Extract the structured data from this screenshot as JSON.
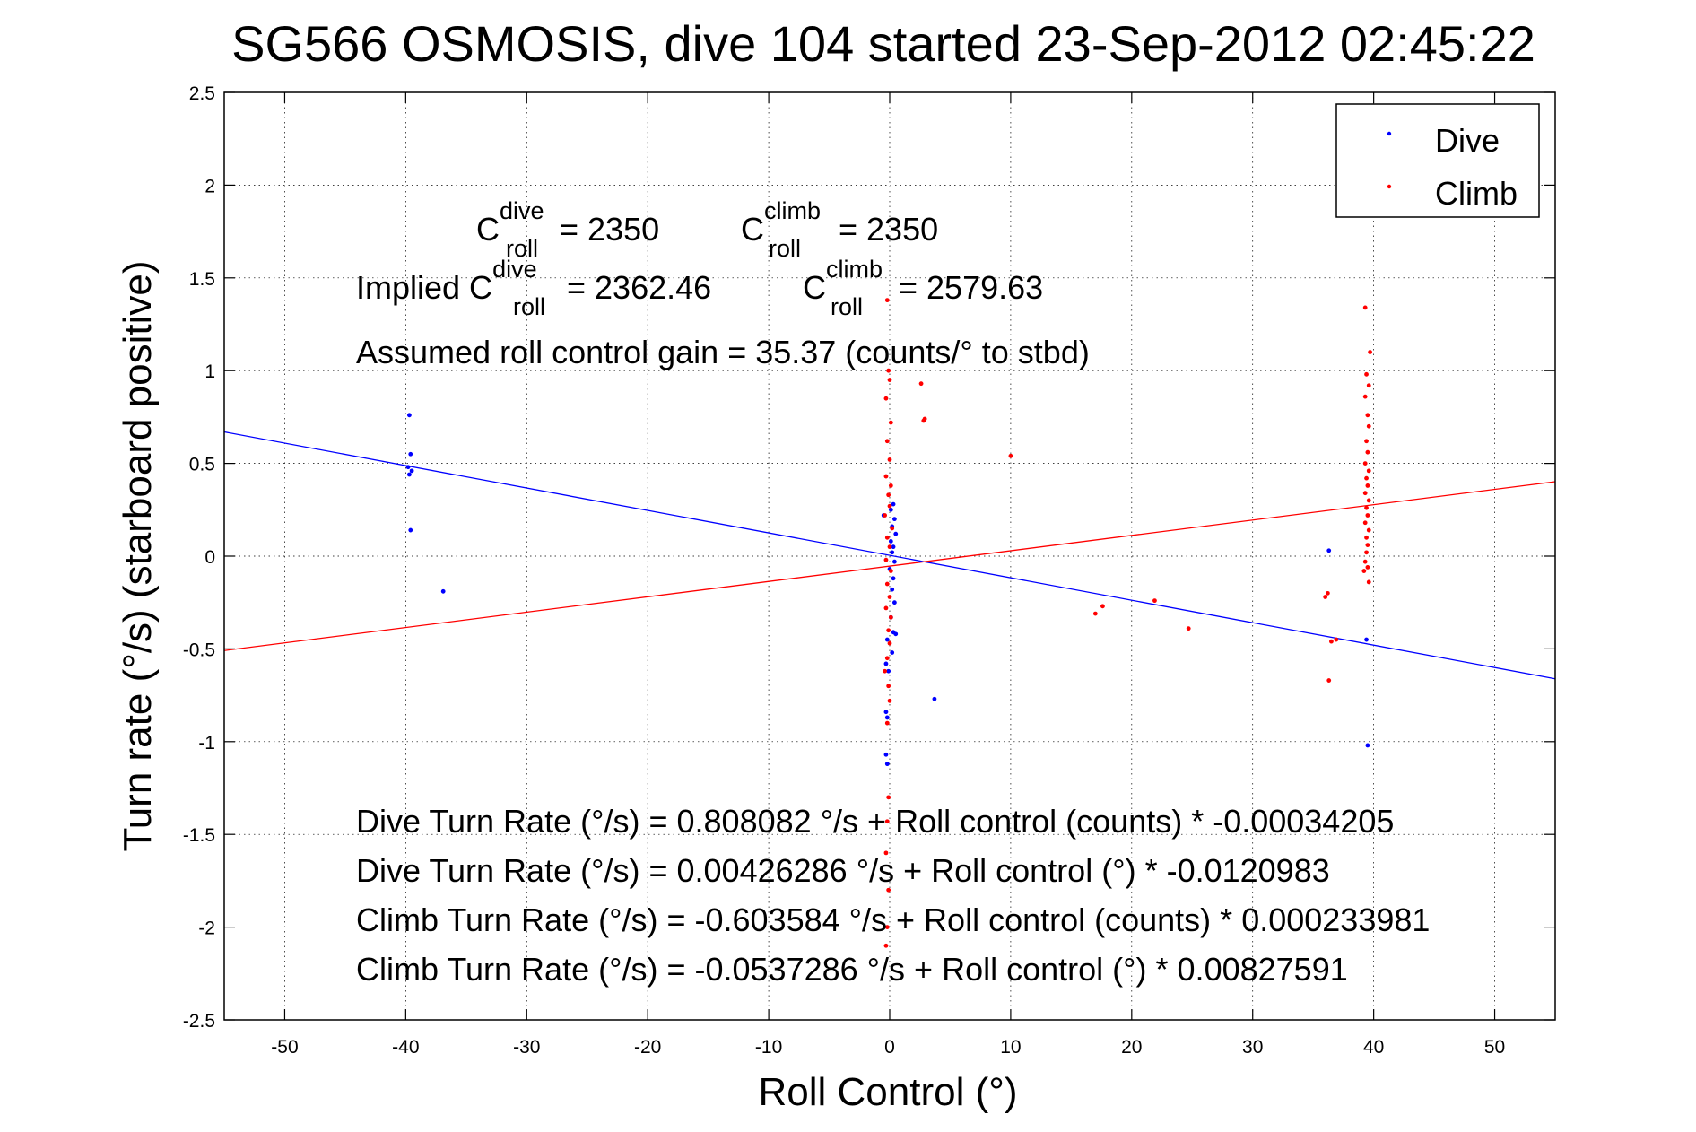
{
  "chart_data": {
    "type": "scatter",
    "title": "SG566 OSMOSIS, dive 104 started 23-Sep-2012 02:45:22",
    "xlabel": "Roll Control (°)",
    "ylabel": "Turn rate (°/s)  (starboard positive)",
    "xlim": [
      -55,
      55
    ],
    "ylim": [
      -2.5,
      2.5
    ],
    "xticks": [
      -50,
      -40,
      -30,
      -20,
      -10,
      0,
      10,
      20,
      30,
      40,
      50
    ],
    "yticks": [
      -2.5,
      -2,
      -1.5,
      -1,
      -0.5,
      0,
      0.5,
      1,
      1.5,
      2,
      2.5
    ],
    "xtick_labels": [
      "-50",
      "-40",
      "-30",
      "-20",
      "-10",
      "0",
      "10",
      "20",
      "30",
      "40",
      "50"
    ],
    "ytick_labels": [
      "-2.5",
      "-2",
      "-1.5",
      "-1",
      "-0.5",
      "0",
      "0.5",
      "1",
      "1.5",
      "2",
      "2.5"
    ],
    "grid": true,
    "legend_position": "top-right",
    "colors": {
      "dive": "#0000ff",
      "climb": "#ff0000"
    },
    "series": [
      {
        "name": "Dive",
        "color": "#0000ff",
        "points": [
          [
            -39.7,
            0.76
          ],
          [
            -39.6,
            0.55
          ],
          [
            -39.8,
            0.48
          ],
          [
            -39.5,
            0.46
          ],
          [
            -39.7,
            0.44
          ],
          [
            -39.6,
            0.14
          ],
          [
            -36.9,
            -0.19
          ],
          [
            -0.5,
            0.22
          ],
          [
            0.3,
            0.28
          ],
          [
            0.1,
            0.25
          ],
          [
            0.4,
            0.2
          ],
          [
            0.2,
            0.16
          ],
          [
            0.5,
            0.12
          ],
          [
            0.1,
            0.08
          ],
          [
            0.3,
            0.05
          ],
          [
            0.2,
            0.02
          ],
          [
            0.4,
            -0.03
          ],
          [
            0.0,
            -0.07
          ],
          [
            0.3,
            -0.12
          ],
          [
            0.2,
            -0.18
          ],
          [
            0.4,
            -0.25
          ],
          [
            0.1,
            -0.33
          ],
          [
            0.3,
            -0.41
          ],
          [
            0.5,
            -0.42
          ],
          [
            -0.2,
            -0.45
          ],
          [
            0.2,
            -0.52
          ],
          [
            -0.3,
            -0.58
          ],
          [
            -0.1,
            -0.62
          ],
          [
            -0.3,
            -0.84
          ],
          [
            -0.2,
            -0.87
          ],
          [
            -0.3,
            -1.07
          ],
          [
            -0.2,
            -1.12
          ],
          [
            3.7,
            -0.77
          ],
          [
            36.3,
            0.03
          ],
          [
            39.4,
            -0.45
          ],
          [
            39.5,
            -1.02
          ]
        ]
      },
      {
        "name": "Climb",
        "color": "#ff0000",
        "points": [
          [
            -0.2,
            1.38
          ],
          [
            -0.1,
            1.0
          ],
          [
            0.0,
            0.95
          ],
          [
            -0.3,
            0.85
          ],
          [
            0.1,
            0.72
          ],
          [
            -0.2,
            0.62
          ],
          [
            0.0,
            0.52
          ],
          [
            -0.3,
            0.43
          ],
          [
            0.1,
            0.38
          ],
          [
            -0.1,
            0.33
          ],
          [
            0.0,
            0.27
          ],
          [
            -0.4,
            0.22
          ],
          [
            0.2,
            0.15
          ],
          [
            -0.2,
            0.1
          ],
          [
            0.0,
            0.05
          ],
          [
            -0.3,
            -0.02
          ],
          [
            0.1,
            -0.08
          ],
          [
            -0.2,
            -0.15
          ],
          [
            0.0,
            -0.22
          ],
          [
            -0.3,
            -0.28
          ],
          [
            0.1,
            -0.33
          ],
          [
            -0.1,
            -0.4
          ],
          [
            0.0,
            -0.47
          ],
          [
            -0.2,
            -0.55
          ],
          [
            -0.4,
            -0.62
          ],
          [
            -0.1,
            -0.7
          ],
          [
            0.0,
            -0.78
          ],
          [
            -0.2,
            -0.9
          ],
          [
            -0.1,
            -1.3
          ],
          [
            -0.2,
            -1.43
          ],
          [
            -0.3,
            -1.6
          ],
          [
            -0.1,
            -1.8
          ],
          [
            -0.2,
            -2.0
          ],
          [
            -0.3,
            -2.1
          ],
          [
            2.6,
            0.93
          ],
          [
            2.9,
            0.74
          ],
          [
            2.8,
            0.73
          ],
          [
            10.0,
            0.54
          ],
          [
            17.0,
            -0.31
          ],
          [
            17.6,
            -0.27
          ],
          [
            21.9,
            -0.24
          ],
          [
            24.7,
            -0.39
          ],
          [
            36.0,
            -0.22
          ],
          [
            36.2,
            -0.2
          ],
          [
            36.5,
            -0.46
          ],
          [
            36.9,
            -0.45
          ],
          [
            36.3,
            -0.67
          ],
          [
            39.3,
            1.34
          ],
          [
            39.7,
            1.1
          ],
          [
            39.4,
            0.98
          ],
          [
            39.6,
            0.92
          ],
          [
            39.3,
            0.86
          ],
          [
            39.5,
            0.76
          ],
          [
            39.6,
            0.7
          ],
          [
            39.4,
            0.62
          ],
          [
            39.5,
            0.56
          ],
          [
            39.3,
            0.5
          ],
          [
            39.6,
            0.46
          ],
          [
            39.4,
            0.42
          ],
          [
            39.5,
            0.38
          ],
          [
            39.3,
            0.34
          ],
          [
            39.6,
            0.3
          ],
          [
            39.4,
            0.26
          ],
          [
            39.5,
            0.22
          ],
          [
            39.3,
            0.18
          ],
          [
            39.6,
            0.14
          ],
          [
            39.4,
            0.1
          ],
          [
            39.5,
            0.06
          ],
          [
            39.4,
            0.02
          ],
          [
            39.3,
            -0.03
          ],
          [
            39.5,
            -0.06
          ],
          [
            39.2,
            -0.08
          ],
          [
            39.6,
            -0.14
          ]
        ]
      }
    ],
    "fits": [
      {
        "series": "Dive",
        "intercept": 0.00426286,
        "slope": -0.0120983,
        "color": "#0000ff"
      },
      {
        "series": "Climb",
        "intercept": -0.0537286,
        "slope": 0.00827591,
        "color": "#ff0000"
      }
    ]
  },
  "annotations": {
    "c_dive_prefix": "C",
    "c_dive_sup": "dive",
    "c_dive_sub": "roll",
    "c_dive_value": " = 2350",
    "c_climb_prefix": "C",
    "c_climb_sup": "climb",
    "c_climb_sub": "roll",
    "c_climb_value": " = 2350",
    "implied_label": "Implied C",
    "implied_dive_sup": "dive",
    "implied_dive_sub": "roll",
    "implied_dive_value": " = 2362.46",
    "implied_climb_prefix": "C",
    "implied_climb_sup": "climb",
    "implied_climb_sub": "roll",
    "implied_climb_value": " = 2579.63",
    "gain": "Assumed roll control gain = 35.37 (counts/° to stbd)",
    "eq1": "Dive Turn Rate (°/s) = 0.808082 °/s + Roll control (counts) * -0.00034205",
    "eq2": "Dive Turn Rate (°/s) = 0.00426286 °/s + Roll control (°) * -0.0120983",
    "eq3": "Climb Turn Rate (°/s) = -0.603584 °/s + Roll control (counts) * 0.000233981",
    "eq4": "Climb Turn Rate (°/s) = -0.0537286 °/s + Roll control (°) * 0.00827591"
  },
  "legend": {
    "dive_label": "Dive",
    "climb_label": "Climb"
  }
}
